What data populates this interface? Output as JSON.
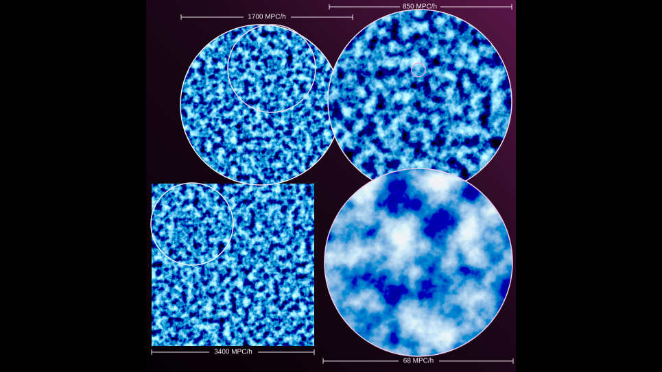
{
  "scale_bars": [
    {
      "label": "1700 MPC/h"
    },
    {
      "label": "850 MPC/h"
    },
    {
      "label": "3400 MPC/h"
    },
    {
      "label": "68 MPC/h"
    }
  ]
}
